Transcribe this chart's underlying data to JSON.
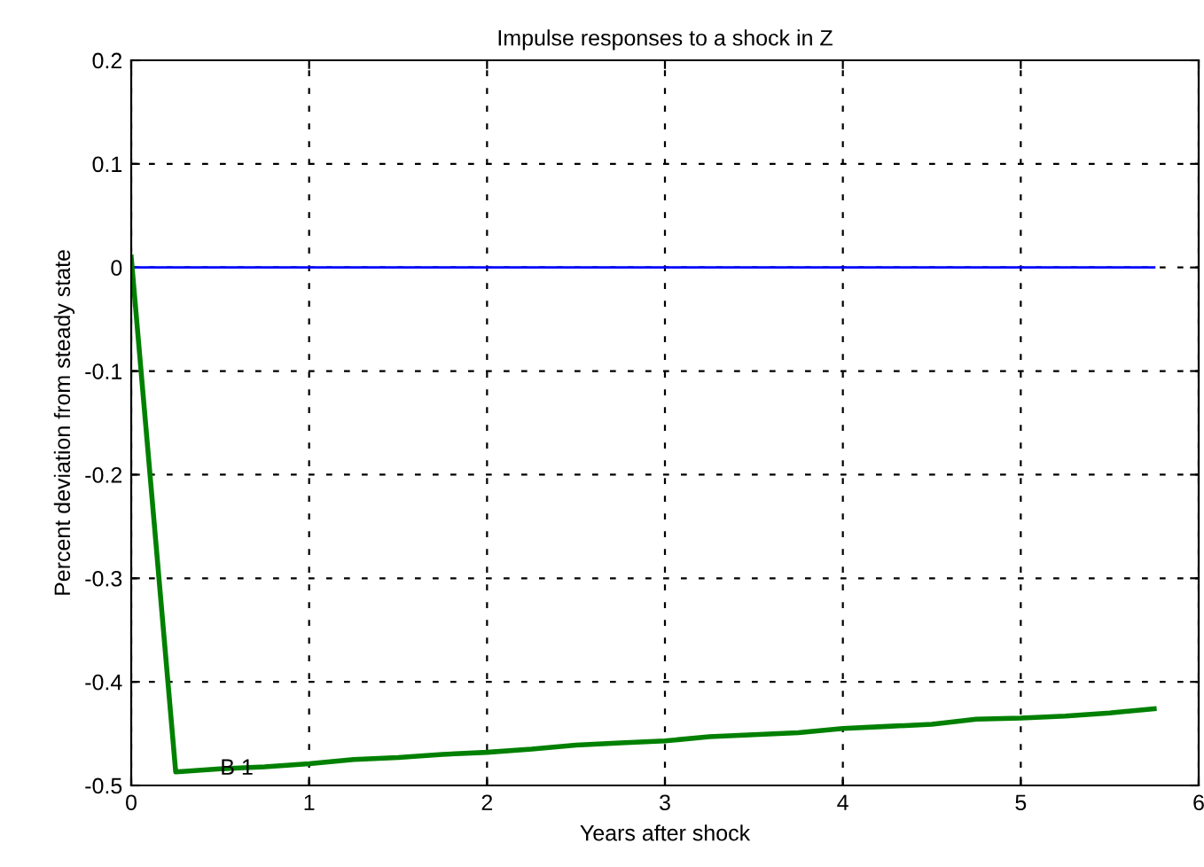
{
  "chart_data": {
    "type": "line",
    "title": "Impulse responses to a shock in Z",
    "xlabel": "Years after shock",
    "ylabel": "Percent deviation from steady state",
    "series": [
      {
        "color": "#0000ff",
        "x": [
          0,
          5.75
        ],
        "values": [
          0,
          0
        ]
      },
      {
        "color": "#008000",
        "x": [
          0,
          0.25,
          0.5,
          0.75,
          1,
          1.25,
          1.5,
          1.75,
          2,
          2.25,
          2.5,
          2.75,
          3,
          3.25,
          3.5,
          3.75,
          4,
          4.25,
          4.5,
          4.75,
          5,
          5.25,
          5.5,
          5.75
        ],
        "values": [
          0.01,
          -0.487,
          -0.484,
          -0.482,
          -0.479,
          -0.475,
          -0.473,
          -0.47,
          -0.468,
          -0.465,
          -0.461,
          -0.459,
          -0.457,
          -0.453,
          -0.451,
          -0.449,
          -0.445,
          -0.443,
          -0.441,
          -0.436,
          -0.435,
          -0.433,
          -0.43,
          -0.426
        ]
      }
    ],
    "annotations": [
      {
        "text": "B 1",
        "x": 0.5,
        "y": -0.484
      }
    ],
    "xlim": [
      0,
      6
    ],
    "xticks": [
      0,
      1,
      2,
      3,
      4,
      5,
      6
    ],
    "ylim": [
      -0.5,
      0.2
    ],
    "yticks": [
      {
        "value": -0.5,
        "label": "-0.5"
      },
      {
        "value": -0.4,
        "label": "-0.4"
      },
      {
        "value": -0.3,
        "label": "-0.3"
      },
      {
        "value": -0.2,
        "label": "-0.2"
      },
      {
        "value": -0.1,
        "label": "-0.1"
      },
      0,
      0.1,
      0.2
    ],
    "grid": true,
    "line_style": "solid",
    "marker": "none"
  }
}
